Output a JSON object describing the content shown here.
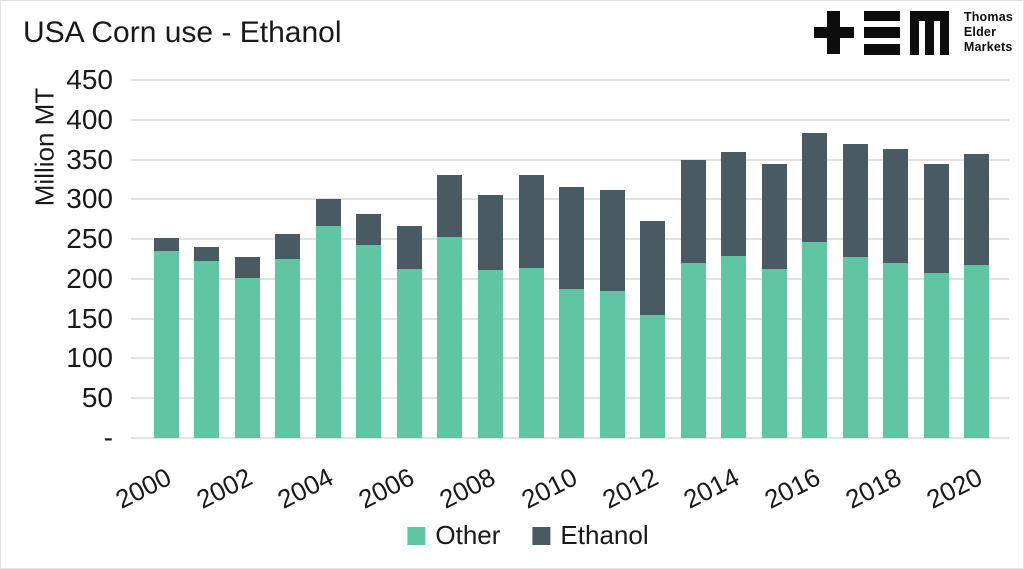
{
  "page": {
    "title": "USA Corn use - Ethanol"
  },
  "logo": {
    "line1": "Thomas",
    "line2": "Elder",
    "line3": "Markets"
  },
  "colors": {
    "other": "#5FC5A2",
    "ethanol": "#4A5A62",
    "grid": "#E2E2E2",
    "text": "#191919",
    "logo": "#0D0D0D"
  },
  "chart_data": {
    "type": "bar",
    "stacked": true,
    "title": "USA Corn use - Ethanol",
    "ylabel": "Million MT",
    "ylim": [
      0,
      450
    ],
    "ytick_step": 50,
    "zero_tick_label": "-",
    "grid": true,
    "legend_position": "bottom",
    "xtick_every": 2,
    "categories": [
      2000,
      2001,
      2002,
      2003,
      2004,
      2005,
      2006,
      2007,
      2008,
      2009,
      2010,
      2011,
      2012,
      2013,
      2014,
      2015,
      2016,
      2017,
      2018,
      2019,
      2020
    ],
    "series": [
      {
        "name": "Other",
        "color": "#5FC5A2",
        "values": [
          235,
          222,
          201,
          225,
          266,
          242,
          213,
          253,
          211,
          214,
          187,
          185,
          155,
          220,
          229,
          213,
          246,
          227,
          220,
          208,
          218
        ]
      },
      {
        "name": "Ethanol",
        "color": "#4A5A62",
        "values": [
          16,
          18,
          26,
          31,
          34,
          40,
          54,
          78,
          94,
          117,
          128,
          127,
          118,
          130,
          131,
          131,
          137,
          143,
          143,
          137,
          139
        ]
      }
    ]
  }
}
